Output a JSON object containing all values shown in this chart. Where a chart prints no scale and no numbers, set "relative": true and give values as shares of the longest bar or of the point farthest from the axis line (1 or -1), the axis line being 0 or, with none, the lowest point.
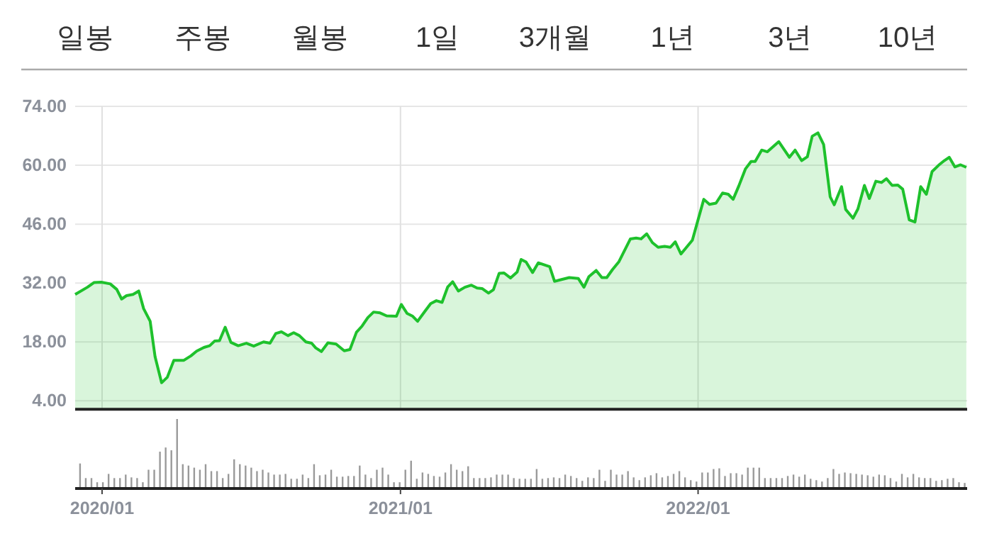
{
  "chart_data": [
    {
      "type": "area",
      "annotations": [
        "일봉",
        "주봉",
        "월봉",
        "1일",
        "3개월",
        "1년",
        "3년",
        "10년"
      ],
      "xlim": [
        "2019-11-29",
        "2022-11-27"
      ],
      "xticks": [
        {
          "value": "2020-01-01",
          "label": null
        },
        {
          "value": "2021-01-01",
          "label": null
        },
        {
          "value": "2022-01-01",
          "label": null
        }
      ],
      "ylim": [
        2,
        74
      ],
      "yticks": [
        {
          "value": 4,
          "label": "4.00"
        },
        {
          "value": 18,
          "label": "18.00"
        },
        {
          "value": 32,
          "label": "32.00"
        },
        {
          "value": 46,
          "label": "46.00"
        },
        {
          "value": 60,
          "label": "60.00"
        },
        {
          "value": 74,
          "label": "74.00"
        }
      ],
      "grid": true,
      "tick_labels": "y",
      "series": [
        {
          "color": "#1ec12c",
          "x": [
            "2019-11-29",
            "2019-12-14",
            "2019-12-22",
            "2019-12-31",
            "2020-01-11",
            "2020-01-19",
            "2020-01-25",
            "2020-01-31",
            "2020-02-08",
            "2020-02-15",
            "2020-02-21",
            "2020-02-29",
            "2020-03-06",
            "2020-03-14",
            "2020-03-21",
            "2020-03-29",
            "2020-04-10",
            "2020-04-19",
            "2020-04-26",
            "2020-05-05",
            "2020-05-12",
            "2020-05-18",
            "2020-05-24",
            "2020-05-31",
            "2020-06-07",
            "2020-06-16",
            "2020-06-26",
            "2020-07-05",
            "2020-07-17",
            "2020-07-25",
            "2020-08-01",
            "2020-08-08",
            "2020-08-16",
            "2020-08-23",
            "2020-08-30",
            "2020-09-07",
            "2020-09-14",
            "2020-09-19",
            "2020-09-26",
            "2020-10-04",
            "2020-10-14",
            "2020-10-24",
            "2020-10-31",
            "2020-11-08",
            "2020-11-15",
            "2020-11-22",
            "2020-11-29",
            "2020-12-07",
            "2020-12-15",
            "2020-12-27",
            "2021-01-02",
            "2021-01-09",
            "2021-01-16",
            "2021-01-22",
            "2021-01-31",
            "2021-02-07",
            "2021-02-14",
            "2021-02-21",
            "2021-02-28",
            "2021-03-06",
            "2021-03-13",
            "2021-03-21",
            "2021-03-29",
            "2021-04-05",
            "2021-04-11",
            "2021-04-19",
            "2021-04-25",
            "2021-05-02",
            "2021-05-08",
            "2021-05-16",
            "2021-05-24",
            "2021-05-29",
            "2021-06-04",
            "2021-06-12",
            "2021-06-19",
            "2021-07-03",
            "2021-07-09",
            "2021-07-15",
            "2021-07-27",
            "2021-08-07",
            "2021-08-14",
            "2021-08-20",
            "2021-08-29",
            "2021-09-05",
            "2021-09-11",
            "2021-09-18",
            "2021-09-26",
            "2021-10-10",
            "2021-10-17",
            "2021-10-23",
            "2021-10-30",
            "2021-11-06",
            "2021-11-13",
            "2021-11-21",
            "2021-11-28",
            "2021-12-04",
            "2021-12-11",
            "2021-12-25",
            "2022-01-08",
            "2022-01-15",
            "2022-01-23",
            "2022-01-31",
            "2022-02-07",
            "2022-02-13",
            "2022-02-20",
            "2022-02-28",
            "2022-03-07",
            "2022-03-12",
            "2022-03-20",
            "2022-03-27",
            "2022-04-10",
            "2022-04-23",
            "2022-04-30",
            "2022-05-08",
            "2022-05-15",
            "2022-05-21",
            "2022-05-28",
            "2022-06-04",
            "2022-06-12",
            "2022-06-17",
            "2022-06-26",
            "2022-07-01",
            "2022-07-10",
            "2022-07-16",
            "2022-07-24",
            "2022-07-30",
            "2022-08-07",
            "2022-08-14",
            "2022-08-20",
            "2022-08-27",
            "2022-09-03",
            "2022-09-09",
            "2022-09-17",
            "2022-09-24",
            "2022-10-01",
            "2022-10-08",
            "2022-10-15",
            "2022-10-23",
            "2022-10-30",
            "2022-11-05",
            "2022-11-12",
            "2022-11-19",
            "2022-11-26"
          ],
          "values": [
            29.3,
            31.0,
            32.1,
            32.2,
            31.8,
            30.5,
            28.2,
            29.0,
            29.3,
            30.1,
            25.9,
            22.9,
            14.5,
            8.3,
            9.6,
            13.6,
            13.6,
            14.7,
            15.8,
            16.7,
            17.1,
            18.2,
            18.3,
            21.5,
            17.9,
            17.1,
            17.7,
            17.0,
            18.0,
            17.7,
            20.0,
            20.4,
            19.5,
            20.2,
            19.5,
            18.0,
            17.7,
            16.6,
            15.7,
            17.8,
            17.5,
            15.9,
            16.2,
            20.3,
            21.8,
            23.8,
            25.1,
            24.9,
            24.2,
            24.1,
            26.9,
            24.8,
            24.1,
            22.9,
            25.3,
            27.1,
            27.8,
            27.4,
            31.1,
            32.3,
            30.1,
            31.0,
            31.5,
            30.8,
            30.7,
            29.6,
            30.4,
            34.3,
            34.4,
            33.2,
            34.6,
            37.6,
            37.0,
            34.5,
            36.8,
            35.9,
            32.4,
            32.7,
            33.3,
            33.1,
            31.0,
            33.5,
            35.0,
            33.3,
            33.3,
            35.2,
            37.1,
            42.5,
            42.7,
            42.5,
            43.7,
            41.6,
            40.5,
            40.7,
            40.5,
            41.8,
            38.9,
            42.2,
            51.9,
            50.7,
            51.0,
            53.4,
            53.1,
            51.9,
            55.1,
            59.1,
            60.9,
            60.9,
            63.6,
            63.2,
            65.6,
            61.9,
            63.6,
            61.1,
            62.0,
            66.9,
            67.7,
            64.9,
            52.5,
            50.6,
            54.9,
            49.5,
            47.4,
            49.6,
            55.2,
            52.1,
            56.2,
            55.9,
            56.8,
            55.2,
            55.3,
            54.3,
            47.0,
            46.5,
            54.9,
            53.1,
            58.5,
            60.0,
            61.1,
            61.9,
            59.6,
            60.1,
            59.5
          ]
        }
      ]
    },
    {
      "type": "bar",
      "relative": true,
      "xlim": [
        "2019-11-29",
        "2022-11-27"
      ],
      "xticks": [
        {
          "value": "2020-01-01",
          "label": "2020/01"
        },
        {
          "value": "2021-01-01",
          "label": "2021/01"
        },
        {
          "value": "2022-01-01",
          "label": "2022/01"
        }
      ],
      "tick_labels": "x",
      "series": [
        {
          "color": "#9a9a9a",
          "x": [
            "2019-12-05",
            "2019-12-12",
            "2019-12-19",
            "2019-12-26",
            "2020-01-02",
            "2020-01-09",
            "2020-01-16",
            "2020-01-23",
            "2020-01-30",
            "2020-02-06",
            "2020-02-13",
            "2020-02-20",
            "2020-02-27",
            "2020-03-05",
            "2020-03-12",
            "2020-03-19",
            "2020-03-26",
            "2020-04-02",
            "2020-04-09",
            "2020-04-16",
            "2020-04-23",
            "2020-04-30",
            "2020-05-07",
            "2020-05-14",
            "2020-05-21",
            "2020-05-28",
            "2020-06-04",
            "2020-06-11",
            "2020-06-18",
            "2020-06-25",
            "2020-07-02",
            "2020-07-09",
            "2020-07-16",
            "2020-07-23",
            "2020-07-30",
            "2020-08-06",
            "2020-08-13",
            "2020-08-20",
            "2020-08-27",
            "2020-09-03",
            "2020-09-10",
            "2020-09-17",
            "2020-09-24",
            "2020-10-01",
            "2020-10-08",
            "2020-10-15",
            "2020-10-22",
            "2020-10-29",
            "2020-11-05",
            "2020-11-12",
            "2020-11-19",
            "2020-11-26",
            "2020-12-03",
            "2020-12-10",
            "2020-12-17",
            "2020-12-24",
            "2020-12-31",
            "2021-01-07",
            "2021-01-14",
            "2021-01-21",
            "2021-01-28",
            "2021-02-04",
            "2021-02-11",
            "2021-02-18",
            "2021-02-25",
            "2021-03-04",
            "2021-03-11",
            "2021-03-18",
            "2021-03-25",
            "2021-04-01",
            "2021-04-08",
            "2021-04-15",
            "2021-04-22",
            "2021-04-29",
            "2021-05-06",
            "2021-05-13",
            "2021-05-20",
            "2021-05-27",
            "2021-06-03",
            "2021-06-10",
            "2021-06-17",
            "2021-06-24",
            "2021-07-01",
            "2021-07-08",
            "2021-07-15",
            "2021-07-22",
            "2021-07-29",
            "2021-08-05",
            "2021-08-12",
            "2021-08-19",
            "2021-08-26",
            "2021-09-02",
            "2021-09-09",
            "2021-09-16",
            "2021-09-23",
            "2021-09-30",
            "2021-10-07",
            "2021-10-14",
            "2021-10-21",
            "2021-10-28",
            "2021-11-04",
            "2021-11-11",
            "2021-11-18",
            "2021-11-25",
            "2021-12-02",
            "2021-12-09",
            "2021-12-16",
            "2021-12-23",
            "2021-12-30",
            "2022-01-06",
            "2022-01-13",
            "2022-01-20",
            "2022-01-27",
            "2022-02-03",
            "2022-02-10",
            "2022-02-17",
            "2022-02-24",
            "2022-03-03",
            "2022-03-10",
            "2022-03-17",
            "2022-03-24",
            "2022-03-31",
            "2022-04-07",
            "2022-04-14",
            "2022-04-21",
            "2022-04-28",
            "2022-05-05",
            "2022-05-12",
            "2022-05-19",
            "2022-05-26",
            "2022-06-02",
            "2022-06-09",
            "2022-06-16",
            "2022-06-23",
            "2022-06-30",
            "2022-07-07",
            "2022-07-14",
            "2022-07-21",
            "2022-07-28",
            "2022-08-04",
            "2022-08-11",
            "2022-08-18",
            "2022-08-25",
            "2022-09-01",
            "2022-09-08",
            "2022-09-15",
            "2022-09-22",
            "2022-09-29",
            "2022-10-06",
            "2022-10-13",
            "2022-10-20",
            "2022-10-27",
            "2022-11-03",
            "2022-11-10",
            "2022-11-17",
            "2022-11-24"
          ],
          "values": [
            0.36,
            0.15,
            0.15,
            0.09,
            0.09,
            0.21,
            0.15,
            0.15,
            0.2,
            0.16,
            0.15,
            0.09,
            0.27,
            0.27,
            0.53,
            0.59,
            0.55,
            1,
            0.35,
            0.33,
            0.3,
            0.27,
            0.35,
            0.25,
            0.25,
            0.15,
            0.21,
            0.42,
            0.35,
            0.33,
            0.3,
            0.25,
            0.27,
            0.23,
            0.2,
            0.2,
            0.21,
            0.14,
            0.14,
            0.2,
            0.15,
            0.35,
            0.19,
            0.2,
            0.27,
            0.17,
            0.17,
            0.18,
            0.18,
            0.33,
            0.2,
            0.15,
            0.27,
            0.3,
            0.2,
            0.09,
            0.09,
            0.27,
            0.4,
            0.14,
            0.23,
            0.21,
            0.18,
            0.17,
            0.23,
            0.35,
            0.27,
            0.25,
            0.32,
            0.15,
            0.15,
            0.15,
            0.16,
            0.2,
            0.2,
            0.2,
            0.15,
            0.14,
            0.14,
            0.14,
            0.28,
            0.14,
            0.15,
            0.16,
            0.15,
            0.2,
            0.18,
            0.15,
            0.11,
            0.16,
            0.15,
            0.27,
            0.11,
            0.27,
            0.2,
            0.2,
            0.25,
            0.16,
            0.12,
            0.16,
            0.19,
            0.22,
            0.16,
            0.18,
            0.21,
            0.25,
            0.16,
            0.12,
            0.1,
            0.23,
            0.23,
            0.28,
            0.29,
            0.18,
            0.22,
            0.22,
            0.2,
            0.3,
            0.3,
            0.3,
            0.15,
            0.15,
            0.15,
            0.15,
            0.18,
            0.2,
            0.17,
            0.2,
            0.14,
            0.12,
            0.1,
            0.15,
            0.28,
            0.21,
            0.23,
            0.22,
            0.21,
            0.2,
            0.19,
            0.17,
            0.2,
            0.19,
            0.15,
            0.1,
            0.21,
            0.16,
            0.21,
            0.16,
            0.15,
            0.15,
            0.11,
            0.12,
            0.14,
            0.15,
            0.09,
            0.08
          ]
        }
      ]
    }
  ]
}
